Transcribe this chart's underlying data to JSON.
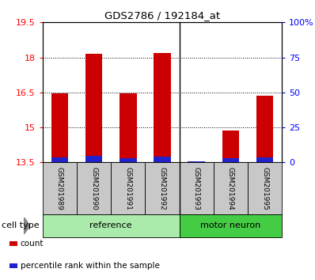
{
  "title": "GDS2786 / 192184_at",
  "samples": [
    "GSM201989",
    "GSM201990",
    "GSM201991",
    "GSM201992",
    "GSM201993",
    "GSM201994",
    "GSM201995"
  ],
  "count_values": [
    16.45,
    18.15,
    16.45,
    18.2,
    13.52,
    14.85,
    16.35
  ],
  "percentile_values": [
    3.5,
    4.5,
    3.0,
    4.0,
    1.0,
    3.0,
    3.5
  ],
  "ymin": 13.5,
  "ymax": 19.5,
  "yticks_left": [
    13.5,
    15.0,
    16.5,
    18.0,
    19.5
  ],
  "yticks_right": [
    0,
    25,
    50,
    75,
    100
  ],
  "bar_color": "#CC0000",
  "percentile_color": "#2222CC",
  "group_ref_color": "#AAEAAA",
  "group_motor_color": "#44CC44",
  "sample_box_color": "#C8C8C8",
  "legend_items": [
    {
      "label": "count",
      "color": "#CC0000"
    },
    {
      "label": "percentile rank within the sample",
      "color": "#2222CC"
    }
  ]
}
